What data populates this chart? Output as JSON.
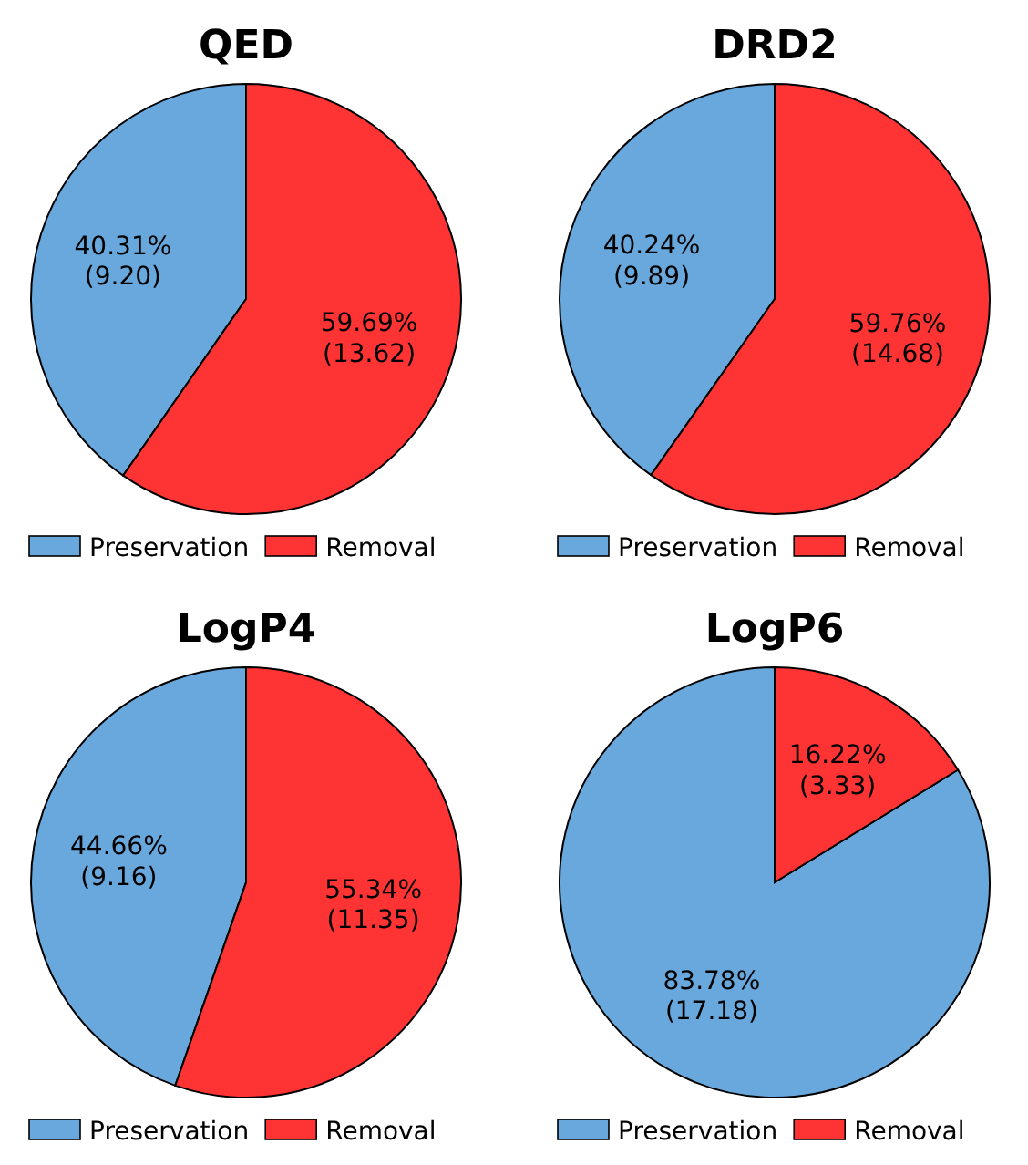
{
  "chart_data": [
    {
      "type": "pie",
      "title": "QED",
      "categories": [
        "Preservation",
        "Removal"
      ],
      "values": [
        9.2,
        13.62
      ],
      "colors": [
        "#68a8dc",
        "#fe3333"
      ],
      "value_labels": [
        "40.31%\n(9.20)",
        "59.69%\n(13.62)"
      ],
      "legend": "bottom"
    },
    {
      "type": "pie",
      "title": "DRD2",
      "categories": [
        "Preservation",
        "Removal"
      ],
      "values": [
        9.89,
        14.68
      ],
      "colors": [
        "#68a8dc",
        "#fe3333"
      ],
      "value_labels": [
        "40.24%\n(9.89)",
        "59.76%\n(14.68)"
      ],
      "legend": "bottom"
    },
    {
      "type": "pie",
      "title": "LogP4",
      "categories": [
        "Preservation",
        "Removal"
      ],
      "values": [
        9.16,
        11.35
      ],
      "colors": [
        "#68a8dc",
        "#fe3333"
      ],
      "value_labels": [
        "44.66%\n(9.16)",
        "55.34%\n(11.35)"
      ],
      "legend": "bottom"
    },
    {
      "type": "pie",
      "title": "LogP6",
      "categories": [
        "Preservation",
        "Removal"
      ],
      "values": [
        17.18,
        3.33
      ],
      "colors": [
        "#68a8dc",
        "#fe3333"
      ],
      "value_labels": [
        "83.78%\n(17.18)",
        "16.22%\n(3.33)"
      ],
      "legend": "bottom"
    }
  ]
}
